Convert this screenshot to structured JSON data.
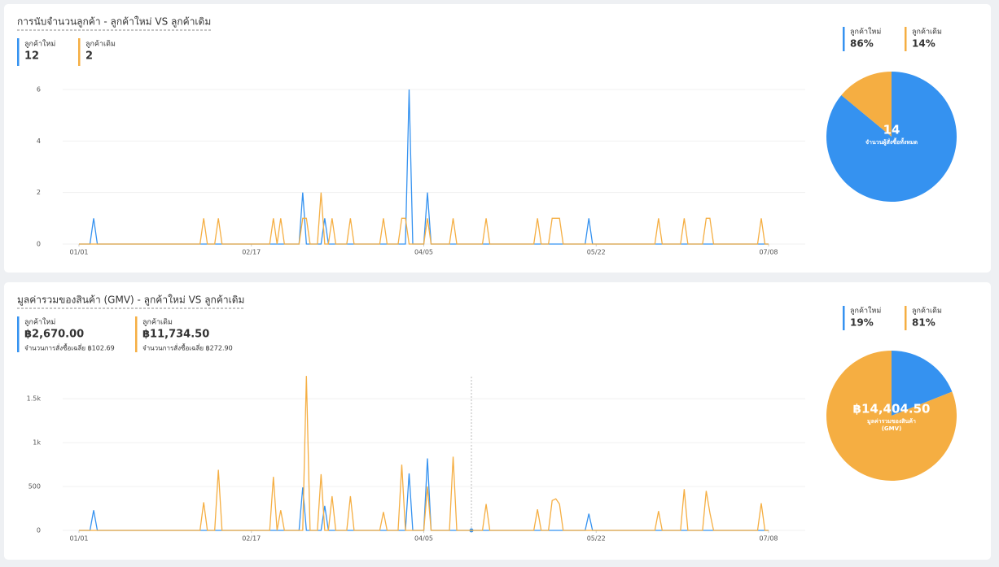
{
  "panels": [
    {
      "title": "การนับจำนวนลูกค้า - ลูกค้าใหม่ VS ลูกค้าเดิม",
      "stats": [
        {
          "value": "12"
        },
        {
          "value": "2"
        }
      ],
      "pie_center": {
        "value": "14",
        "label": [
          "จำนวนผู้สั่งซื้อทั้งหมด"
        ]
      }
    },
    {
      "title": "มูลค่ารวมของสินค้า (GMV) - ลูกค้าใหม่ VS ลูกค้าเดิม",
      "stats": [
        {
          "value": "฿2,670.00",
          "note": "จำนวนการสั่งซื้อเฉลี่ย ฿102.69"
        },
        {
          "value": "฿11,734.50",
          "note": "จำนวนการสั่งซื้อเฉลี่ย ฿272.90"
        }
      ],
      "pie_center": {
        "value": "฿14,404.50",
        "label": [
          "มูลค่ารวมของสินค้า",
          "(GMV)"
        ]
      }
    }
  ],
  "chart_data": [
    {
      "type": "line",
      "xlim": [
        0,
        188
      ],
      "xticks": [
        {
          "value": 0,
          "label": "01/01"
        },
        {
          "value": 47,
          "label": "02/17"
        },
        {
          "value": 94,
          "label": "04/05"
        },
        {
          "value": 141,
          "label": "05/22"
        },
        {
          "value": 188,
          "label": "07/08"
        }
      ],
      "ylim": [
        0,
        6
      ],
      "yticks": [
        0,
        2,
        4,
        6
      ],
      "grid": true,
      "series": [
        {
          "name": "ลูกค้าใหม่",
          "color": "#3592f0",
          "x": [
            0,
            3,
            4,
            5,
            60,
            61,
            62,
            66,
            67,
            68,
            89,
            90,
            91,
            94,
            95,
            96,
            138,
            139,
            140,
            188
          ],
          "values": [
            0,
            0,
            1,
            0,
            0,
            2,
            0,
            0,
            1,
            0,
            0,
            6,
            0,
            0,
            2,
            0,
            0,
            1,
            0,
            0
          ]
        },
        {
          "name": "ลูกค้าเดิม",
          "color": "#f5ae42",
          "x": [
            0,
            33,
            34,
            35,
            37,
            38,
            39,
            52,
            53,
            54,
            55,
            56,
            60,
            61,
            62,
            63,
            65,
            66,
            67,
            68,
            69,
            70,
            73,
            74,
            75,
            82,
            83,
            84,
            87,
            88,
            89,
            90,
            94,
            95,
            96,
            101,
            102,
            103,
            110,
            111,
            112,
            124,
            125,
            126,
            128,
            129,
            130,
            131,
            132,
            157,
            158,
            159,
            164,
            165,
            166,
            170,
            171,
            172,
            173,
            185,
            186,
            187,
            188
          ],
          "values": [
            0,
            0,
            1,
            0,
            0,
            1,
            0,
            0,
            1,
            0,
            1,
            0,
            0,
            1,
            1,
            0,
            0,
            2,
            0,
            0,
            1,
            0,
            0,
            1,
            0,
            0,
            1,
            0,
            0,
            1,
            1,
            0,
            0,
            1,
            0,
            0,
            1,
            0,
            0,
            1,
            0,
            0,
            1,
            0,
            0,
            1,
            1,
            1,
            0,
            0,
            1,
            0,
            0,
            1,
            0,
            0,
            1,
            1,
            0,
            0,
            1,
            0,
            0
          ]
        }
      ]
    },
    {
      "type": "pie",
      "categories": [
        "ลูกค้าใหม่",
        "ลูกค้าเดิม"
      ],
      "values": [
        86,
        14
      ],
      "value_labels": [
        "86%",
        "14%"
      ],
      "colors": [
        "#3592f0",
        "#f5ae42"
      ]
    },
    {
      "type": "line",
      "xlim": [
        0,
        188
      ],
      "xticks": [
        {
          "value": 0,
          "label": "01/01"
        },
        {
          "value": 47,
          "label": "02/17"
        },
        {
          "value": 94,
          "label": "04/05"
        },
        {
          "value": 141,
          "label": "05/22"
        },
        {
          "value": 188,
          "label": "07/08"
        }
      ],
      "ylim": [
        0,
        1780
      ],
      "yticks": [
        0,
        500,
        {
          "value": 1000,
          "label": "1k"
        },
        {
          "value": 1500,
          "label": "1.5k"
        }
      ],
      "grid": true,
      "series": [
        {
          "name": "ลูกค้าใหม่",
          "color": "#3592f0",
          "x": [
            0,
            3,
            4,
            5,
            60,
            61,
            62,
            66,
            67,
            68,
            89,
            90,
            91,
            94,
            95,
            96,
            138,
            139,
            140,
            188
          ],
          "values": [
            0,
            0,
            230,
            0,
            0,
            490,
            0,
            0,
            280,
            0,
            0,
            650,
            0,
            0,
            820,
            0,
            0,
            190,
            0,
            0
          ]
        },
        {
          "name": "ลูกค้าเดิม",
          "color": "#f5ae42",
          "x": [
            0,
            33,
            34,
            35,
            37,
            38,
            39,
            52,
            53,
            54,
            55,
            56,
            61,
            62,
            63,
            65,
            66,
            67,
            68,
            69,
            70,
            73,
            74,
            75,
            82,
            83,
            84,
            87,
            88,
            89,
            94,
            95,
            96,
            101,
            102,
            103,
            110,
            111,
            112,
            124,
            125,
            126,
            128,
            129,
            130,
            131,
            132,
            157,
            158,
            159,
            164,
            165,
            166,
            170,
            171,
            172,
            173,
            185,
            186,
            187,
            188
          ],
          "values": [
            0,
            0,
            320,
            0,
            0,
            690,
            0,
            0,
            610,
            0,
            230,
            0,
            0,
            1760,
            0,
            0,
            640,
            0,
            0,
            390,
            0,
            0,
            390,
            0,
            0,
            210,
            0,
            0,
            750,
            0,
            0,
            500,
            0,
            0,
            840,
            0,
            0,
            300,
            0,
            0,
            240,
            0,
            0,
            340,
            360,
            300,
            0,
            0,
            220,
            0,
            0,
            470,
            0,
            0,
            450,
            200,
            0,
            0,
            310,
            0,
            0
          ]
        }
      ]
    },
    {
      "type": "pie",
      "categories": [
        "ลูกค้าใหม่",
        "ลูกค้าเดิม"
      ],
      "values": [
        19,
        81
      ],
      "value_labels": [
        "19%",
        "81%"
      ],
      "colors": [
        "#3592f0",
        "#f5ae42"
      ]
    }
  ]
}
